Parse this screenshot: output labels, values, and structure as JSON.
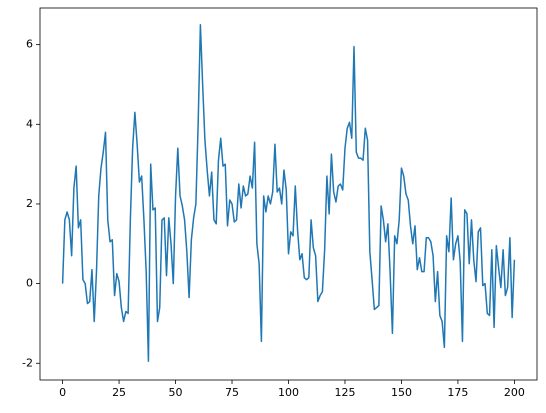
{
  "chart_data": {
    "type": "line",
    "color": "#1f77b4",
    "x": [
      0,
      1,
      2,
      3,
      4,
      5,
      6,
      7,
      8,
      9,
      10,
      11,
      12,
      13,
      14,
      15,
      16,
      17,
      18,
      19,
      20,
      21,
      22,
      23,
      24,
      25,
      26,
      27,
      28,
      29,
      30,
      31,
      32,
      33,
      34,
      35,
      36,
      37,
      38,
      39,
      40,
      41,
      42,
      43,
      44,
      45,
      46,
      47,
      48,
      49,
      50,
      51,
      52,
      53,
      54,
      55,
      56,
      57,
      58,
      59,
      60,
      61,
      62,
      63,
      64,
      65,
      66,
      67,
      68,
      69,
      70,
      71,
      72,
      73,
      74,
      75,
      76,
      77,
      78,
      79,
      80,
      81,
      82,
      83,
      84,
      85,
      86,
      87,
      88,
      89,
      90,
      91,
      92,
      93,
      94,
      95,
      96,
      97,
      98,
      99,
      100,
      101,
      102,
      103,
      104,
      105,
      106,
      107,
      108,
      109,
      110,
      111,
      112,
      113,
      114,
      115,
      116,
      117,
      118,
      119,
      120,
      121,
      122,
      123,
      124,
      125,
      126,
      127,
      128,
      129,
      130,
      131,
      132,
      133,
      134,
      135,
      136,
      137,
      138,
      139,
      140,
      141,
      142,
      143,
      144,
      145,
      146,
      147,
      148,
      149,
      150,
      151,
      152,
      153,
      154,
      155,
      156,
      157,
      158,
      159,
      160,
      161,
      162,
      163,
      164,
      165,
      166,
      167,
      168,
      169,
      170,
      171,
      172,
      173,
      174,
      175,
      176,
      177,
      178,
      179,
      180,
      181,
      182,
      183,
      184,
      185,
      186,
      187,
      188,
      189,
      190,
      191,
      192,
      193,
      194,
      195,
      196,
      197,
      198,
      199,
      200
    ],
    "values": [
      0,
      1.6,
      1.8,
      1.6,
      0.7,
      2.4,
      2.95,
      1.4,
      1.6,
      0.1,
      0.0,
      -0.5,
      -0.45,
      0.35,
      -0.95,
      0.3,
      2.2,
      2.9,
      3.3,
      3.8,
      1.6,
      1.05,
      1.1,
      -0.3,
      0.25,
      0.05,
      -0.6,
      -0.95,
      -0.7,
      -0.75,
      1.6,
      3.4,
      4.3,
      3.5,
      2.55,
      2.7,
      1.6,
      0.3,
      -1.95,
      3.0,
      1.85,
      1.9,
      -0.95,
      -0.6,
      1.6,
      1.65,
      0.2,
      1.65,
      1.0,
      0.0,
      2.2,
      3.4,
      2.2,
      1.95,
      1.6,
      0.8,
      -0.35,
      1.1,
      1.65,
      2.0,
      4.0,
      6.5,
      5.0,
      3.6,
      2.85,
      2.2,
      2.8,
      1.6,
      1.5,
      3.1,
      3.65,
      2.95,
      3.0,
      1.45,
      2.1,
      2.0,
      1.55,
      1.6,
      2.5,
      1.9,
      2.45,
      2.2,
      2.25,
      2.7,
      2.4,
      3.55,
      1.0,
      0.5,
      -1.45,
      2.2,
      1.8,
      2.2,
      2.0,
      2.3,
      3.5,
      2.3,
      2.4,
      2.0,
      2.85,
      2.35,
      0.75,
      1.3,
      1.2,
      2.45,
      1.35,
      0.6,
      0.75,
      0.15,
      0.1,
      0.15,
      1.6,
      0.9,
      0.7,
      -0.45,
      -0.3,
      -0.2,
      0.85,
      2.7,
      1.75,
      3.25,
      2.3,
      2.05,
      2.45,
      2.5,
      2.35,
      3.4,
      3.9,
      4.05,
      3.65,
      5.95,
      3.3,
      3.15,
      3.15,
      3.1,
      3.9,
      3.6,
      0.8,
      0.1,
      -0.65,
      -0.6,
      -0.55,
      1.95,
      1.6,
      1.05,
      1.5,
      0.25,
      -1.25,
      1.2,
      1.0,
      1.6,
      2.9,
      2.7,
      2.25,
      2.1,
      1.45,
      1.0,
      1.45,
      0.35,
      0.65,
      0.3,
      0.3,
      1.15,
      1.15,
      1.05,
      0.7,
      -0.45,
      0.3,
      -0.8,
      -0.95,
      -1.6,
      1.2,
      0.8,
      2.15,
      0.6,
      1.0,
      1.2,
      0.55,
      -1.45,
      1.85,
      1.75,
      0.5,
      1.6,
      0.6,
      0.05,
      1.3,
      1.4,
      -0.05,
      0.0,
      -0.75,
      -0.8,
      0.85,
      -1.1,
      0.95,
      0.4,
      -0.1,
      0.85,
      -0.3,
      -0.1,
      1.15,
      -0.85,
      0.6
    ],
    "xlim": [
      -10,
      210
    ],
    "ylim": [
      -2.42,
      6.92
    ],
    "xticks": [
      0,
      25,
      50,
      75,
      100,
      125,
      150,
      175,
      200
    ],
    "yticks": [
      -2,
      0,
      2,
      4,
      6
    ]
  }
}
